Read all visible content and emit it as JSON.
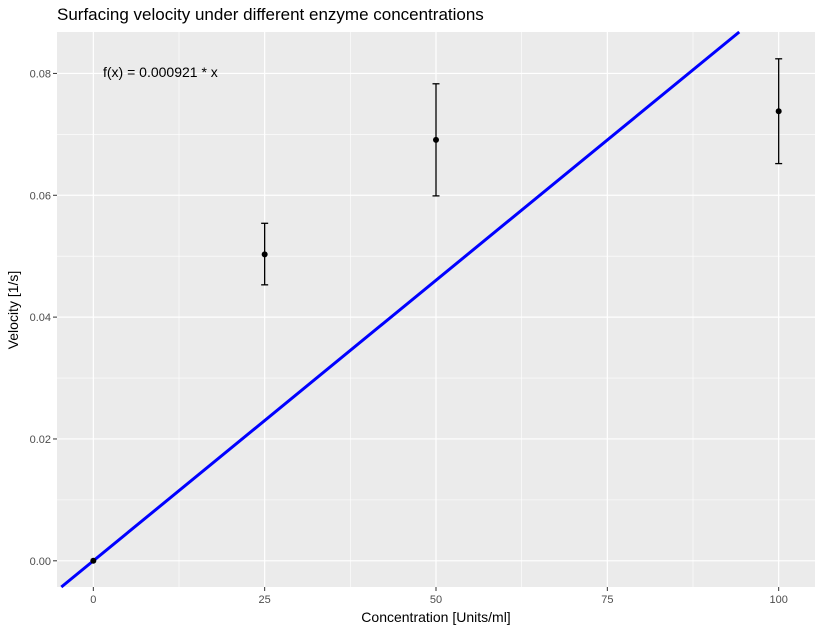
{
  "chart_data": {
    "type": "scatter",
    "title": "Surfacing velocity under different enzyme concentrations",
    "xlabel": "Concentration [Units/ml]",
    "ylabel": "Velocity [1/s]",
    "xlim": [
      -5.3,
      105.3
    ],
    "ylim": [
      -0.0043,
      0.0868
    ],
    "x_ticks": [
      0,
      25,
      50,
      75,
      100
    ],
    "x_tick_labels": [
      "0",
      "25",
      "50",
      "75",
      "100"
    ],
    "y_ticks": [
      0.0,
      0.02,
      0.04,
      0.06,
      0.08
    ],
    "y_tick_labels": [
      "0.00",
      "0.02",
      "0.04",
      "0.06",
      "0.08"
    ],
    "grid": true,
    "points": [
      {
        "x": 0,
        "y": 0.0,
        "ymin": 0.0,
        "ymax": 0.0
      },
      {
        "x": 25,
        "y": 0.0503,
        "ymin": 0.0453,
        "ymax": 0.0554
      },
      {
        "x": 50,
        "y": 0.0691,
        "ymin": 0.0599,
        "ymax": 0.0783
      },
      {
        "x": 100,
        "y": 0.0738,
        "ymin": 0.0652,
        "ymax": 0.0824
      }
    ],
    "fit": {
      "slope": 0.000921,
      "color": "#0000ff",
      "label": "f(x) = 0.000921 * x"
    },
    "colors": {
      "panel": "#ebebeb",
      "grid": "#ffffff",
      "points": "#000000"
    }
  }
}
